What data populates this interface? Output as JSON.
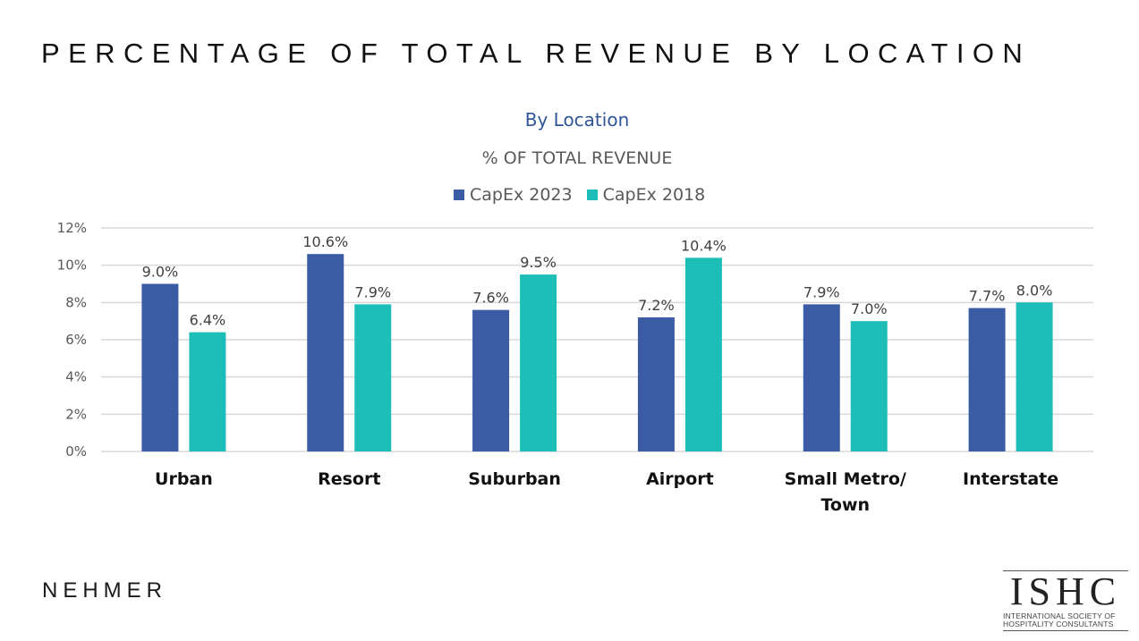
{
  "slide": {
    "title": "PERCENTAGE OF TOTAL REVENUE BY LOCATION",
    "footer_left_logo": "NEHMER",
    "footer_right_logo": {
      "mark": "ISHC",
      "line1": "INTERNATIONAL SOCIETY OF",
      "line2": "HOSPITALITY CONSULTANTS"
    }
  },
  "chart_data": {
    "type": "bar",
    "title": "By Location",
    "subtitle": "% OF TOTAL REVENUE",
    "xlabel": "",
    "ylabel": "",
    "categories": [
      "Urban",
      "Resort",
      "Suburban",
      "Airport",
      "Small Metro/ Town",
      "Interstate"
    ],
    "category_lines": [
      [
        "Urban"
      ],
      [
        "Resort"
      ],
      [
        "Suburban"
      ],
      [
        "Airport"
      ],
      [
        "Small Metro/",
        "Town"
      ],
      [
        "Interstate"
      ]
    ],
    "series": [
      {
        "name": "CapEx 2023",
        "color": "#3c5ba5",
        "values": [
          9.0,
          10.6,
          7.6,
          7.2,
          7.9,
          7.7
        ],
        "labels": [
          "9.0%",
          "10.6%",
          "7.6%",
          "7.2%",
          "7.9%",
          "7.7%"
        ]
      },
      {
        "name": "CapEx 2018",
        "color": "#1dbdb8",
        "values": [
          6.4,
          7.9,
          9.5,
          10.4,
          7.0,
          8.0
        ],
        "labels": [
          "6.4%",
          "7.9%",
          "9.5%",
          "10.4%",
          "7.0%",
          "8.0%"
        ]
      }
    ],
    "ylim": [
      0,
      12
    ],
    "yticks": [
      0,
      2,
      4,
      6,
      8,
      10,
      12
    ],
    "ytick_labels": [
      "0%",
      "2%",
      "4%",
      "6%",
      "8%",
      "10%",
      "12%"
    ],
    "grid": true,
    "legend_position": "top-center"
  }
}
